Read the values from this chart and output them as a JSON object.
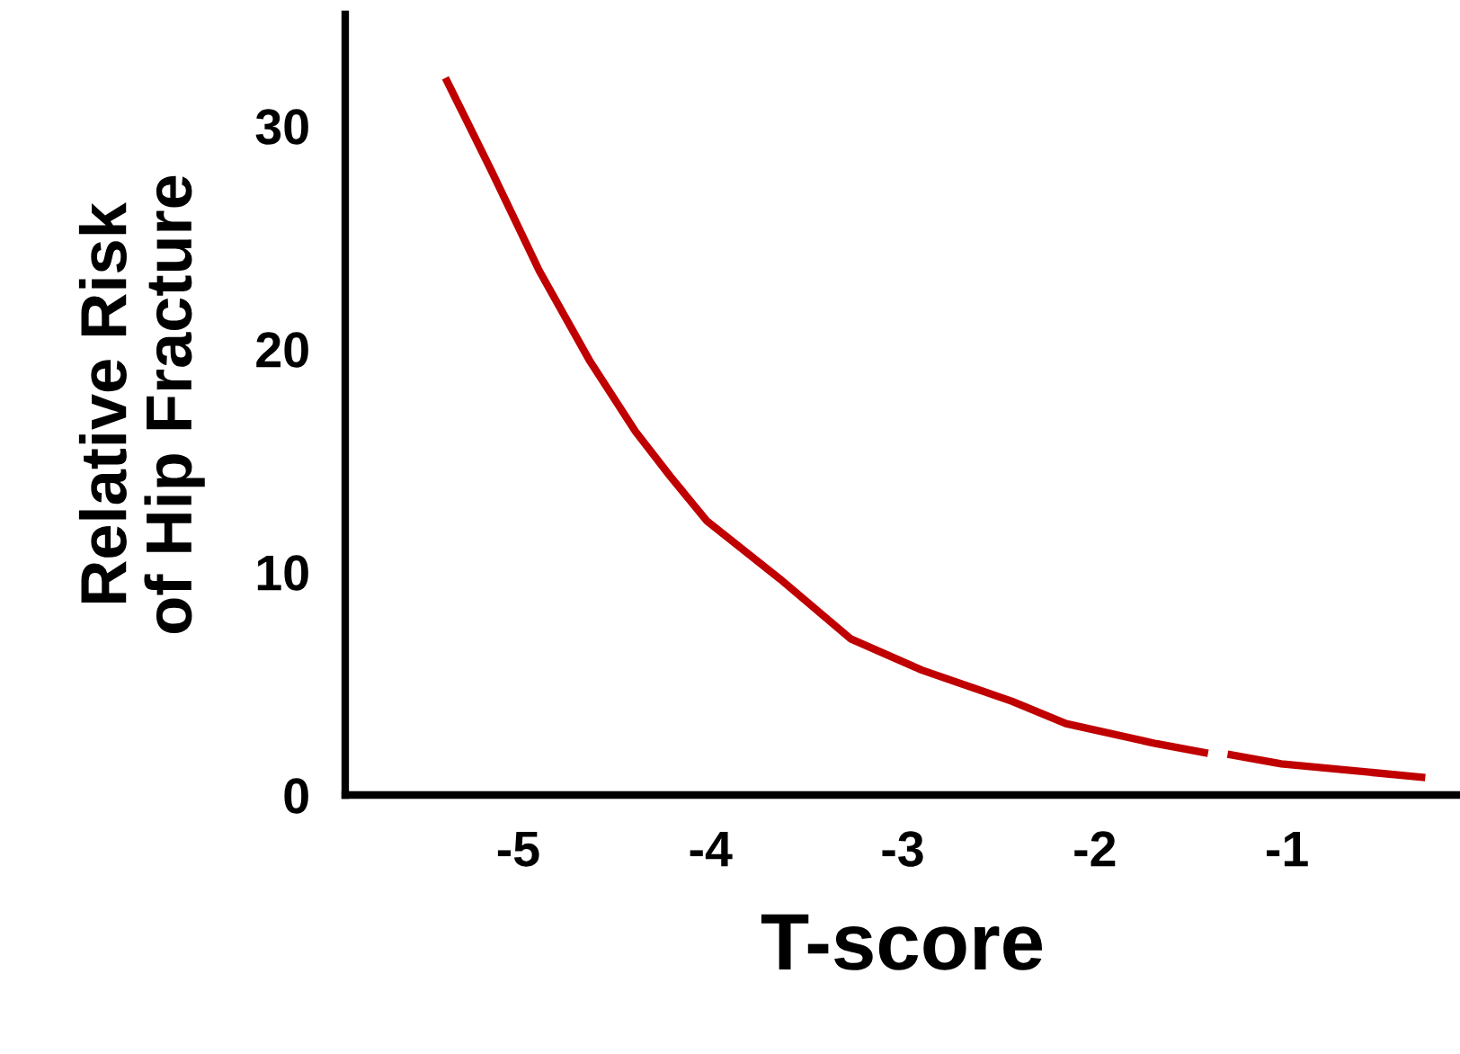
{
  "chart_data": {
    "type": "line",
    "xlabel": "T-score",
    "ylabel": "Relative Risk\nof Hip Fracture",
    "x": [
      -5.37,
      -5.14,
      -4.89,
      -4.63,
      -4.39,
      -4.21,
      -4.02,
      -3.64,
      -3.27,
      -2.9,
      -2.43,
      -2.15,
      -1.68,
      -1.43,
      -1.37,
      -1.29,
      -1.03,
      -0.3
    ],
    "series": [
      {
        "color": "#c00000",
        "values": [
          32,
          28,
          23.5,
          19.5,
          16.3,
          14.3,
          12.3,
          9.7,
          7.0,
          5.6,
          4.2,
          3.2,
          2.3,
          1.9,
          null,
          1.8,
          1.4,
          0.8
        ]
      }
    ],
    "xlim": [
      -5.9,
      -0.1
    ],
    "xticks": [
      -5,
      -4,
      -3,
      -2,
      -1
    ],
    "ylim": [
      0,
      35
    ],
    "yticks": [
      0,
      10,
      20,
      30
    ],
    "grid": false,
    "legend": false,
    "marker": "none",
    "line_style": "solid"
  }
}
